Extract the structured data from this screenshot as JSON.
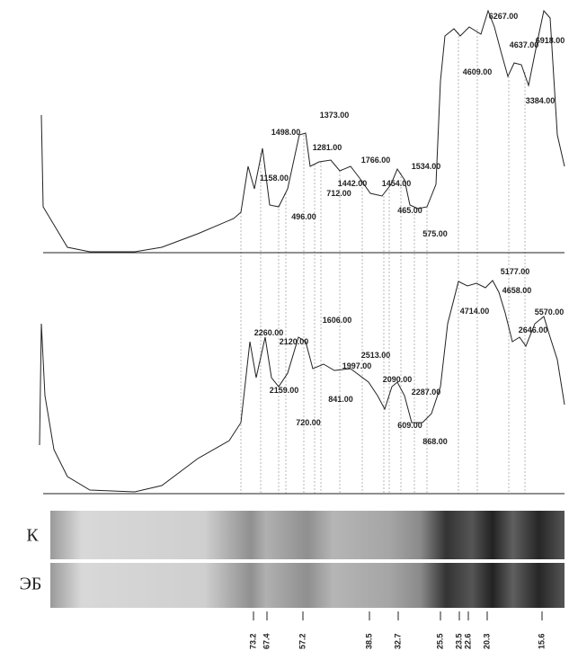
{
  "top_trace": {
    "labels": [
      "6267.00",
      "4637.00",
      "6918.00",
      "4609.00",
      "3384.00",
      "1373.00",
      "1498.00",
      "1281.00",
      "1766.00",
      "1534.00",
      "1158.00",
      "1442.00",
      "1454.00",
      "712.00",
      "465.00",
      "496.00",
      "575.00"
    ]
  },
  "bottom_trace": {
    "labels": [
      "5177.00",
      "4658.00",
      "4714.00",
      "5570.00",
      "1606.00",
      "2260.00",
      "2646.00",
      "2120.00",
      "2513.00",
      "1997.00",
      "2159.00",
      "2090.00",
      "841.00",
      "2287.00",
      "720.00",
      "609.00",
      "868.00"
    ]
  },
  "lanes": [
    "К",
    "ЭБ"
  ],
  "markers": [
    "73.2",
    "67.4",
    "57.2",
    "38.5",
    "32.7",
    "25.5",
    "23.5",
    "22.6",
    "20.3",
    "15.6"
  ]
}
